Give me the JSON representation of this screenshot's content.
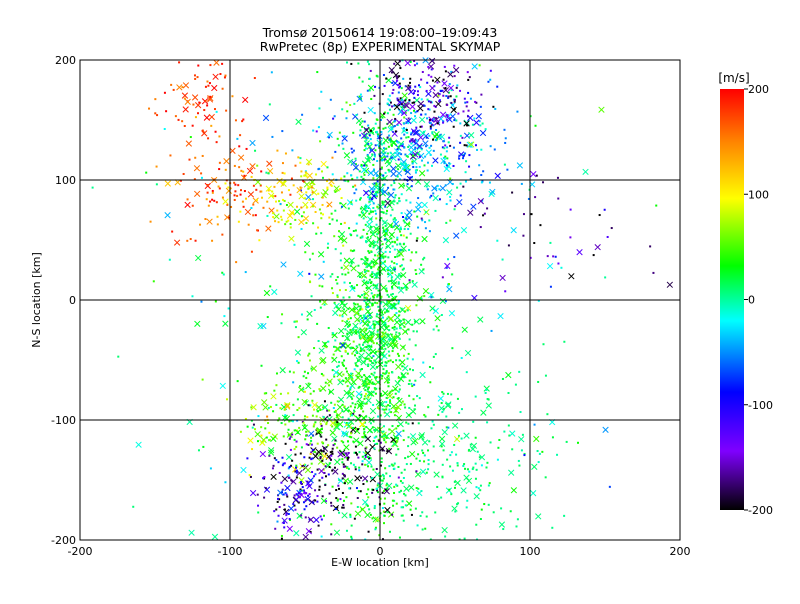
{
  "chart_data": {
    "type": "scatter",
    "title": "Tromsø 20150614 19:08:00–19:09:43",
    "subtitle": "RwPretec (8p) EXPERIMENTAL SKYMAP",
    "xlabel": "E-W location [km]",
    "ylabel": "N-S location [km]",
    "xlim": [
      -200,
      200
    ],
    "ylim": [
      -200,
      200
    ],
    "xticks": [
      "-200",
      "-100",
      "0",
      "100",
      "200"
    ],
    "yticks": [
      "-200",
      "-100",
      "0",
      "100",
      "200"
    ],
    "grid": true,
    "colorbar": {
      "label": "[m/s]",
      "range": [
        -200,
        200
      ],
      "ticks": [
        "200",
        "100",
        "0",
        "-100",
        "-200"
      ]
    },
    "markers": [
      "dot",
      "x"
    ],
    "clusters": [
      {
        "x": 0,
        "y": 10,
        "sx": 12,
        "sy": 90,
        "v": 20,
        "sv": 18,
        "n": 900
      },
      {
        "x": -15,
        "y": -60,
        "sx": 22,
        "sy": 70,
        "v": 35,
        "sv": 20,
        "n": 600
      },
      {
        "x": 20,
        "y": 120,
        "sx": 28,
        "sy": 30,
        "v": -40,
        "sv": 35,
        "n": 450
      },
      {
        "x": 30,
        "y": 170,
        "sx": 20,
        "sy": 20,
        "v": -150,
        "sv": 45,
        "n": 200
      },
      {
        "x": -100,
        "y": 90,
        "sx": 20,
        "sy": 20,
        "v": 170,
        "sv": 25,
        "n": 120
      },
      {
        "x": -55,
        "y": 90,
        "sx": 15,
        "sy": 15,
        "v": 100,
        "sv": 25,
        "n": 120
      },
      {
        "x": -120,
        "y": 170,
        "sx": 15,
        "sy": 20,
        "v": 180,
        "sv": 20,
        "n": 70
      },
      {
        "x": -30,
        "y": -140,
        "sx": 20,
        "sy": 20,
        "v": -190,
        "sv": 20,
        "n": 170
      },
      {
        "x": -55,
        "y": -160,
        "sx": 12,
        "sy": 20,
        "v": -120,
        "sv": 40,
        "n": 120
      },
      {
        "x": 50,
        "y": -130,
        "sx": 30,
        "sy": 40,
        "v": 10,
        "sv": 10,
        "n": 250
      },
      {
        "x": -60,
        "y": -100,
        "sx": 20,
        "sy": 15,
        "v": 60,
        "sv": 30,
        "n": 120
      },
      {
        "x": 90,
        "y": 60,
        "sx": 40,
        "sy": 30,
        "v": -160,
        "sv": 40,
        "n": 50
      },
      {
        "x": 0,
        "y": 0,
        "sx": 80,
        "sy": 120,
        "v": 0,
        "sv": 30,
        "n": 250
      }
    ]
  }
}
